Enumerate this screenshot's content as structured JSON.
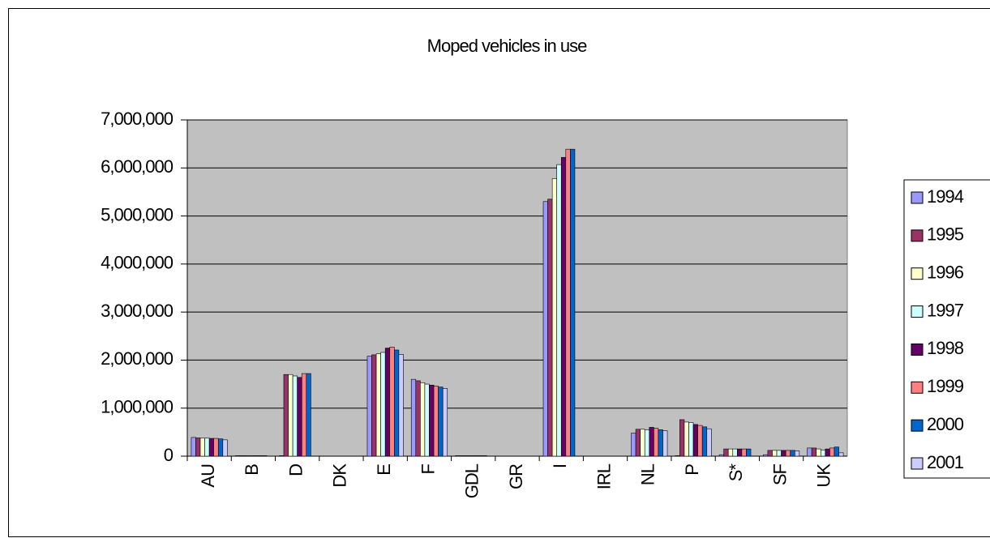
{
  "chart_data": {
    "type": "bar",
    "title": "Moped vehicles in use",
    "categories": [
      "AU",
      "B",
      "D",
      "DK",
      "E",
      "F",
      "GDL",
      "GR",
      "I",
      "IRL",
      "NL",
      "P",
      "S*",
      "SF",
      "UK"
    ],
    "series": [
      {
        "name": "1994",
        "color": "#9999FF",
        "values": [
          390000,
          10000,
          10000,
          null,
          2080000,
          1600000,
          10000,
          null,
          5300000,
          null,
          480000,
          10000,
          30000,
          30000,
          170000
        ]
      },
      {
        "name": "1995",
        "color": "#993366",
        "values": [
          380000,
          10000,
          1700000,
          null,
          2110000,
          1570000,
          10000,
          null,
          5350000,
          null,
          560000,
          760000,
          150000,
          120000,
          170000
        ]
      },
      {
        "name": "1996",
        "color": "#FFFFCC",
        "values": [
          375000,
          10000,
          1700000,
          null,
          2130000,
          1530000,
          10000,
          null,
          5780000,
          null,
          560000,
          710000,
          150000,
          120000,
          150000
        ]
      },
      {
        "name": "1997",
        "color": "#CCFFFF",
        "values": [
          375000,
          10000,
          1670000,
          null,
          2160000,
          1500000,
          10000,
          null,
          6070000,
          null,
          550000,
          700000,
          150000,
          120000,
          130000
        ]
      },
      {
        "name": "1998",
        "color": "#660066",
        "values": [
          370000,
          10000,
          1640000,
          null,
          2250000,
          1480000,
          10000,
          null,
          6220000,
          null,
          600000,
          660000,
          150000,
          120000,
          150000
        ]
      },
      {
        "name": "1999",
        "color": "#FF8080",
        "values": [
          370000,
          10000,
          1720000,
          null,
          2270000,
          1460000,
          10000,
          null,
          6390000,
          null,
          580000,
          640000,
          150000,
          120000,
          170000
        ]
      },
      {
        "name": "2000",
        "color": "#0066CC",
        "values": [
          360000,
          10000,
          1720000,
          null,
          2210000,
          1440000,
          10000,
          null,
          6390000,
          null,
          550000,
          610000,
          150000,
          120000,
          190000
        ]
      },
      {
        "name": "2001",
        "color": "#CCCCFF",
        "values": [
          340000,
          null,
          null,
          null,
          2120000,
          1410000,
          null,
          null,
          null,
          null,
          530000,
          570000,
          null,
          110000,
          70000
        ]
      }
    ],
    "ylim": [
      0,
      7000000
    ],
    "yticks": [
      0,
      {
        "value": 1000000,
        "label": "1,000,000"
      },
      {
        "value": 2000000,
        "label": "2,000,000"
      },
      {
        "value": 3000000,
        "label": "3,000,000"
      },
      {
        "value": 4000000,
        "label": "4,000,000"
      },
      {
        "value": 5000000,
        "label": "5,000,000"
      },
      {
        "value": 6000000,
        "label": "6,000,000"
      },
      {
        "value": 7000000,
        "label": "7,000,000"
      }
    ],
    "grid": true,
    "legend": "right"
  }
}
